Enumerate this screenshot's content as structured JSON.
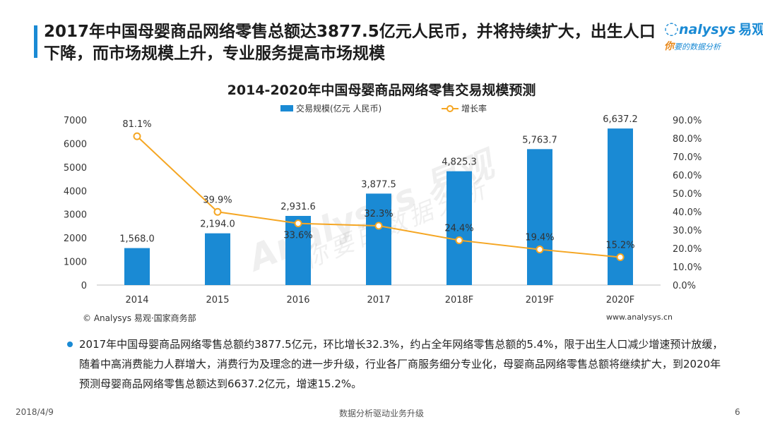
{
  "header": {
    "headline": "2017年中国母婴商品网络零售总额达3877.5亿元人民币，并将持续扩大，出生人口下降，而市场规模上升，专业服务提高市场规模"
  },
  "logo": {
    "brand": "nalysys",
    "brand_cn": "易观",
    "tagline_you": "你",
    "tagline": "要的数据分析"
  },
  "chart_data": {
    "type": "bar",
    "title": "2014-2020年中国母婴商品网络零售交易规模预测",
    "categories": [
      "2014",
      "2015",
      "2016",
      "2017",
      "2018F",
      "2019F",
      "2020F"
    ],
    "series": [
      {
        "name": "交易规模(亿元 人民币)",
        "type": "bar",
        "axis": "left",
        "values": [
          1568.0,
          2194.0,
          2931.6,
          3877.5,
          4825.3,
          5763.7,
          6637.2
        ],
        "labels": [
          "1,568.0",
          "2,194.0",
          "2,931.6",
          "3,877.5",
          "4,825.3",
          "5,763.7",
          "6,637.2"
        ]
      },
      {
        "name": "增长率",
        "type": "line",
        "axis": "right",
        "values": [
          81.1,
          39.9,
          33.6,
          32.3,
          24.4,
          19.4,
          15.2
        ],
        "labels": [
          "81.1%",
          "39.9%",
          "33.6%",
          "32.3%",
          "24.4%",
          "19.4%",
          "15.2%"
        ]
      }
    ],
    "ylim_left": [
      0,
      7000
    ],
    "ylim_right": [
      0,
      90
    ],
    "left_ticks": [
      "0",
      "1000",
      "2000",
      "3000",
      "4000",
      "5000",
      "6000",
      "7000"
    ],
    "right_ticks": [
      "0.0%",
      "10.0%",
      "20.0%",
      "30.0%",
      "40.0%",
      "50.0%",
      "60.0%",
      "70.0%",
      "80.0%",
      "90.0%"
    ],
    "legend_position": "top-center",
    "grid": false,
    "colors": {
      "bar": "#1a8ad4",
      "line": "#f5a623"
    }
  },
  "source": "© Analysys 易观·国家商务部",
  "website": "www.analysys.cn",
  "watermark": {
    "main": "Analysys 易观",
    "sub": "你要的数据分析"
  },
  "summary": "2017年中国母婴商品网络零售总额约3877.5亿元，环比增长32.3%，约占全年网络零售总额的5.4%，限于出生人口减少增速预计放缓，随着中高消费能力人群增大，消费行为及理念的进一步升级，行业各厂商服务细分专业化，母婴商品网络零售总额将继续扩大，到2020年预测母婴商品网络零售总额达到6637.2亿元，增速15.2%。",
  "footer": {
    "date": "2018/4/9",
    "center": "数据分析驱动业务升级",
    "page": "6"
  }
}
